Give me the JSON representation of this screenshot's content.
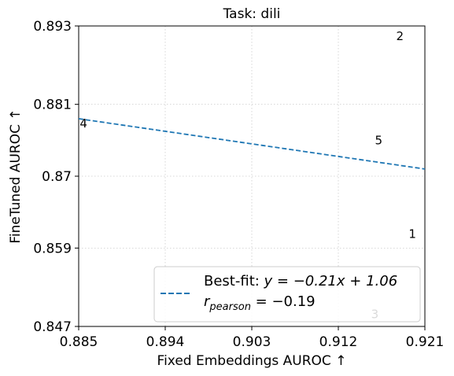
{
  "chart_data": {
    "type": "scatter",
    "title": "Task: dili",
    "xlabel": "Fixed Embeddings AUROC ↑",
    "ylabel": "FineTuned AUROC ↑",
    "xlim": [
      0.885,
      0.921
    ],
    "ylim": [
      0.847,
      0.893
    ],
    "xticks": [
      "0.885",
      "0.894",
      "0.903",
      "0.912",
      "0.921"
    ],
    "yticks": [
      "0.847",
      "0.859",
      "0.87",
      "0.881",
      "0.893"
    ],
    "grid": true,
    "points": [
      {
        "label": "2",
        "x": 0.9184,
        "y": 0.8914
      },
      {
        "label": "4",
        "x": 0.8855,
        "y": 0.878
      },
      {
        "label": "5",
        "x": 0.9162,
        "y": 0.8754
      },
      {
        "label": "1",
        "x": 0.9197,
        "y": 0.8611
      },
      {
        "label": "3",
        "x": 0.9158,
        "y": 0.8488
      }
    ],
    "fit_line": {
      "slope": -0.21,
      "intercept": 1.06,
      "x_start": 0.885,
      "y_start": 0.8788,
      "x_end": 0.921,
      "y_end": 0.8711,
      "color": "#1f77b4",
      "style": "dashed"
    },
    "legend": {
      "placement": "lower-right",
      "fit_prefix": "Best-fit: ",
      "fit_equation": "y = −0.21x + 1.06",
      "pearson_prefix": "r",
      "pearson_sub": "pearson",
      "pearson_value": " = −0.19"
    }
  }
}
